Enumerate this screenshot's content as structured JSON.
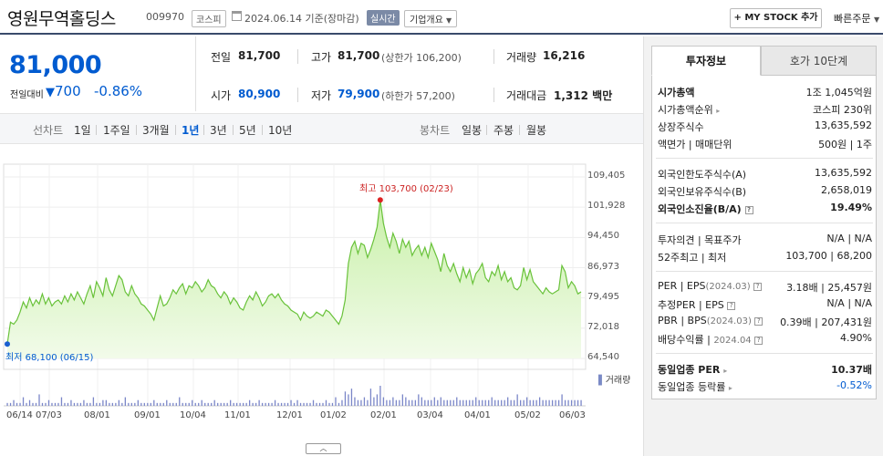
{
  "header": {
    "company": "영원무역홀딩스",
    "code": "009970",
    "market": "코스피",
    "date": "2024.06.14",
    "date_note": "기준(장마감)",
    "realtime": "실시간",
    "company_info": "기업개요",
    "my_stock": "+ MY STOCK 추가",
    "quick_order": "빠른주문"
  },
  "price": {
    "current": "81,000",
    "change_label": "전일대비",
    "change_arrow": "▼",
    "change": "700",
    "change_pct": "-0.86%"
  },
  "summary": {
    "prev_label": "전일",
    "prev": "81,700",
    "high_label": "고가",
    "high": "81,700",
    "upper_limit": "(상한가 106,200)",
    "volume_label": "거래량",
    "volume": "16,216",
    "open_label": "시가",
    "open": "80,900",
    "low_label": "저가",
    "low": "79,900",
    "lower_limit": "(하한가 57,200)",
    "value_label": "거래대금",
    "value": "1,312",
    "value_unit": "백만"
  },
  "tabs": {
    "line_label": "선차트",
    "line_periods": [
      "1일",
      "1주일",
      "3개월",
      "1년",
      "3년",
      "5년",
      "10년"
    ],
    "active_period": "1년",
    "candle_label": "봉차트",
    "candle_periods": [
      "일봉",
      "주봉",
      "월봉"
    ]
  },
  "chart_data": {
    "type": "area",
    "ylim": [
      64540,
      109405
    ],
    "yticks": [
      "109,405",
      "101,928",
      "94,450",
      "86,973",
      "79,495",
      "72,018",
      "64,540"
    ],
    "xticks": [
      "06/14",
      "07/03",
      "08/01",
      "09/01",
      "10/04",
      "11/01",
      "12/01",
      "01/02",
      "02/01",
      "03/04",
      "04/01",
      "05/02",
      "06/03"
    ],
    "high_label": "최고 103,700 (02/23)",
    "low_label": "최저 68,100 (06/15)",
    "volume_label": "거래량",
    "series": [
      {
        "values": [
          68100,
          73500,
          73000,
          74000,
          76000,
          78500,
          77000,
          79500,
          77500,
          79000,
          78000,
          80500,
          78000,
          79500,
          77500,
          78500,
          79000,
          78000,
          80000,
          78500,
          80500,
          79000,
          81000,
          79500,
          78000,
          80500,
          82500,
          79500,
          83500,
          82000,
          80000,
          84500,
          81500,
          80000,
          82500,
          85000,
          84000,
          81000,
          80000,
          82500,
          80500,
          79500,
          78000,
          77500,
          76500,
          75500,
          74000,
          77000,
          80000,
          77500,
          78000,
          79500,
          81500,
          80500,
          82000,
          83000,
          80500,
          82500,
          82000,
          83500,
          82500,
          81000,
          82000,
          84000,
          82500,
          82000,
          80500,
          79500,
          81000,
          80000,
          78000,
          79500,
          78500,
          77000,
          76500,
          78500,
          80000,
          79000,
          81000,
          79500,
          77500,
          78500,
          80000,
          80500,
          79500,
          80500,
          79000,
          78000,
          77500,
          76500,
          76000,
          75500,
          74000,
          76000,
          75000,
          74500,
          75000,
          76000,
          75500,
          75000,
          76500,
          76000,
          75000,
          74000,
          73000,
          75000,
          79000,
          88000,
          92000,
          93500,
          90500,
          93000,
          92500,
          89500,
          91500,
          94000,
          97000,
          103700,
          98000,
          94500,
          92000,
          95500,
          93500,
          90500,
          94000,
          92000,
          93500,
          90000,
          91500,
          92500,
          90000,
          92000,
          89500,
          93000,
          91000,
          89000,
          86000,
          90500,
          87500,
          86000,
          88000,
          85500,
          83500,
          87000,
          84500,
          86500,
          83000,
          85500,
          86500,
          88000,
          84500,
          83500,
          86000,
          85000,
          87500,
          84000,
          86000,
          83500,
          84500,
          82000,
          81500,
          82500,
          87000,
          84000,
          86500,
          83500,
          82500,
          81500,
          80500,
          82000,
          81000,
          80500,
          81000,
          81500,
          87500,
          86000,
          82000,
          83500,
          82500,
          80500,
          81000
        ],
        "volumes": [
          1,
          1,
          2,
          1,
          1,
          3,
          1,
          2,
          1,
          1,
          4,
          1,
          1,
          2,
          1,
          1,
          1,
          3,
          1,
          1,
          2,
          1,
          1,
          1,
          2,
          1,
          1,
          3,
          1,
          1,
          2,
          2,
          1,
          1,
          1,
          2,
          1,
          3,
          1,
          1,
          1,
          2,
          1,
          1,
          1,
          1,
          2,
          1,
          1,
          1,
          2,
          1,
          1,
          1,
          3,
          1,
          1,
          1,
          2,
          1,
          1,
          2,
          1,
          1,
          1,
          2,
          1,
          1,
          1,
          1,
          2,
          1,
          1,
          1,
          1,
          1,
          2,
          1,
          1,
          2,
          1,
          1,
          1,
          1,
          2,
          1,
          1,
          1,
          1,
          2,
          1,
          2,
          1,
          1,
          1,
          1,
          2,
          1,
          1,
          1,
          2,
          1,
          1,
          3,
          1,
          2,
          5,
          4,
          6,
          3,
          2,
          2,
          3,
          2,
          6,
          3,
          4,
          7,
          3,
          2,
          2,
          3,
          2,
          2,
          4,
          3,
          2,
          2,
          2,
          4,
          3,
          2,
          2,
          2,
          3,
          2,
          3,
          2,
          2,
          2,
          2,
          3,
          2,
          2,
          2,
          2,
          2,
          3,
          2,
          2,
          2,
          2,
          3,
          2,
          2,
          2,
          2,
          3,
          2,
          2,
          4,
          2,
          2,
          3,
          2,
          2,
          2,
          3,
          2,
          2,
          2,
          2,
          2,
          2,
          4,
          2,
          2,
          2,
          2,
          2,
          2
        ]
      }
    ]
  },
  "right_panel": {
    "tab_active": "투자정보",
    "tab_other": "호가 10단계",
    "rows1": [
      {
        "k": "시가총액",
        "v": "1조 1,045억원",
        "bold": true
      },
      {
        "k": "시가총액순위",
        "v": "코스피 230위"
      },
      {
        "k": "상장주식수",
        "v": "13,635,592"
      },
      {
        "k": "액면가 | 매매단위",
        "v": "500원 | 1주"
      }
    ],
    "rows2": [
      {
        "k": "외국인한도주식수(A)",
        "v": "13,635,592"
      },
      {
        "k": "외국인보유주식수(B)",
        "v": "2,658,019"
      },
      {
        "k": "외국인소진율(B/A)",
        "v": "19.49%",
        "bold": true
      }
    ],
    "rows3": [
      {
        "k": "투자의견 | 목표주가",
        "v": "N/A | N/A"
      },
      {
        "k": "52주최고 | 최저",
        "v": "103,700 | 68,200"
      }
    ],
    "per_label": "PER | EPS",
    "per_date": "(2024.03)",
    "per_v1": "3.18배",
    "per_v2": "25,457원",
    "eper_label": "추정PER | EPS",
    "eper_v1": "N/A",
    "eper_v2": "N/A",
    "pbr_label": "PBR | BPS",
    "pbr_date": "(2024.03)",
    "pbr_v1": "0.39배",
    "pbr_v2": "207,431원",
    "div_label": "배당수익률",
    "div_date": "2024.04",
    "div_v": "4.90%",
    "sector_per_label": "동일업종 PER",
    "sector_per_v": "10.37배",
    "sector_chg_label": "동일업종 등락률",
    "sector_chg_v": "-0.52%"
  }
}
